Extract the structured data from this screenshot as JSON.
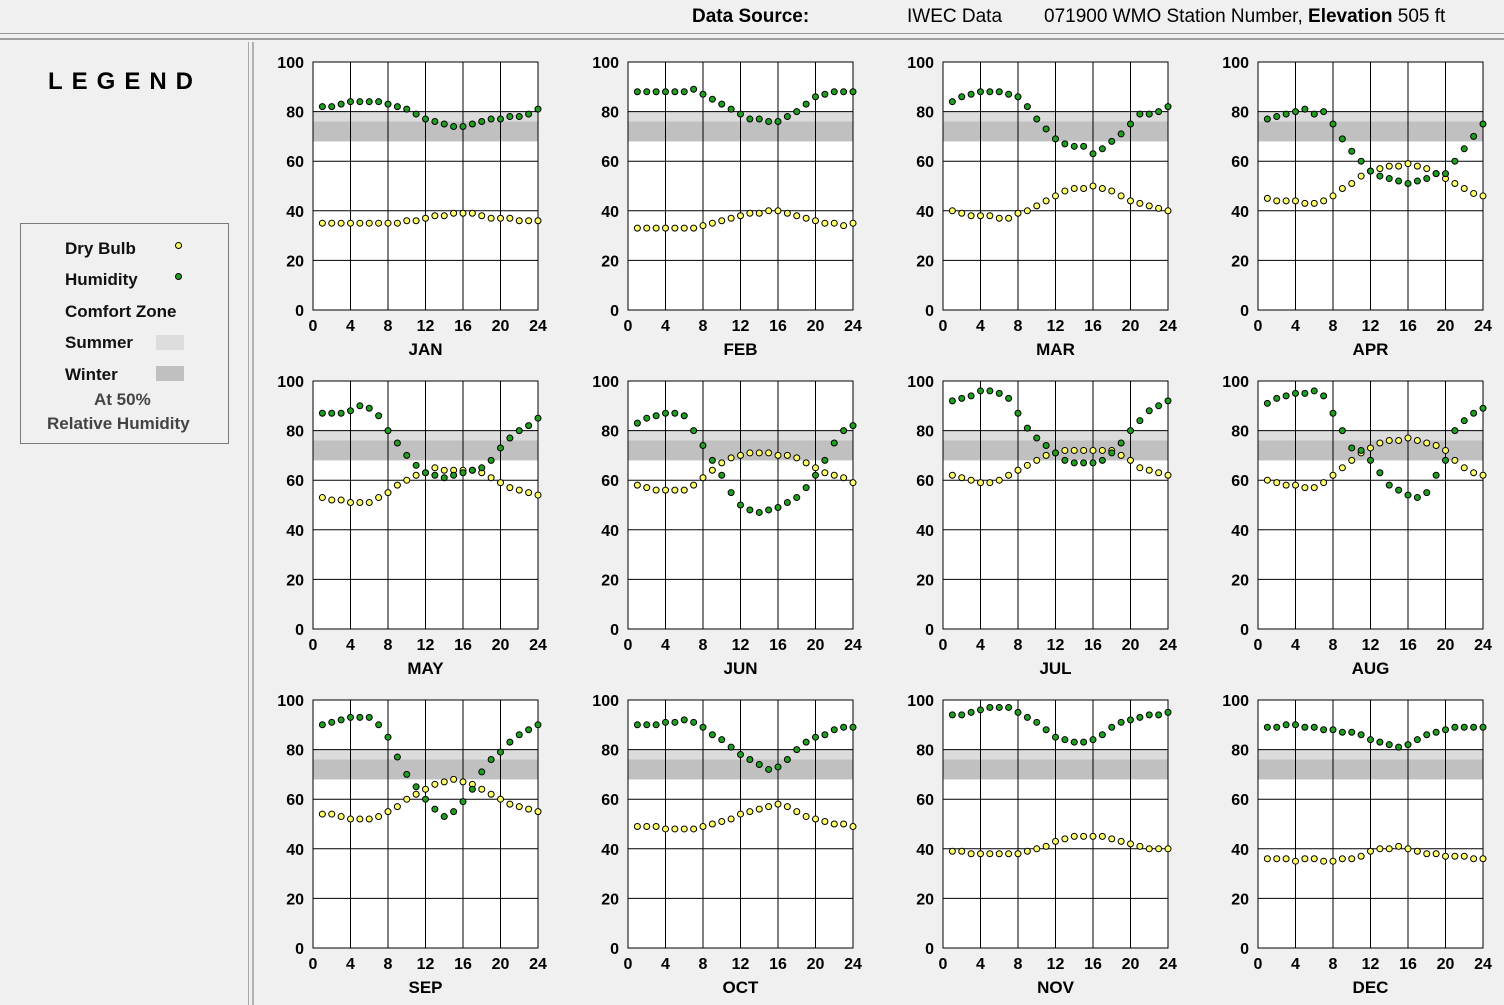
{
  "header": {
    "data_source_label": "Data Source:",
    "data_source_value": "IWEC Data",
    "station_number": "071900 WMO Station Number,",
    "elevation_label": "Elevation",
    "elevation_value": "505 ft"
  },
  "legend": {
    "title": "LEGEND",
    "dry_bulb": "Dry Bulb",
    "humidity": "Humidity",
    "comfort_zone": "Comfort Zone",
    "summer": "Summer",
    "winter": "Winter",
    "note_line1": "At 50%",
    "note_line2": "Relative Humidity"
  },
  "colors": {
    "dry_bulb": "#ffff66",
    "humidity": "#1f9e1f",
    "summer_zone": "#dcdcdc",
    "winter_zone": "#c0c0c0"
  },
  "chart_data": {
    "type": "scatter",
    "x_ticks": [
      0,
      4,
      8,
      12,
      16,
      20,
      24
    ],
    "y_ticks": [
      0,
      20,
      40,
      60,
      80,
      100
    ],
    "xlim": [
      0,
      24
    ],
    "ylim": [
      0,
      100
    ],
    "grid": true,
    "comfort_zone": {
      "summer": [
        68,
        80
      ],
      "winter": [
        68,
        76
      ]
    },
    "months": [
      {
        "name": "JAN",
        "dry_bulb": [
          35,
          35,
          35,
          35,
          35,
          35,
          35,
          35,
          35,
          36,
          36,
          37,
          38,
          38,
          39,
          39,
          39,
          38,
          37,
          37,
          37,
          36,
          36,
          36
        ],
        "humidity": [
          82,
          82,
          83,
          84,
          84,
          84,
          84,
          83,
          82,
          81,
          79,
          77,
          76,
          75,
          74,
          74,
          75,
          76,
          77,
          77,
          78,
          78,
          79,
          81
        ]
      },
      {
        "name": "FEB",
        "dry_bulb": [
          33,
          33,
          33,
          33,
          33,
          33,
          33,
          34,
          35,
          36,
          37,
          38,
          39,
          39,
          40,
          40,
          39,
          38,
          37,
          36,
          35,
          35,
          34,
          35
        ],
        "humidity": [
          88,
          88,
          88,
          88,
          88,
          88,
          89,
          87,
          85,
          83,
          81,
          79,
          77,
          77,
          76,
          76,
          78,
          80,
          83,
          86,
          87,
          88,
          88,
          88
        ]
      },
      {
        "name": "MAR",
        "dry_bulb": [
          40,
          39,
          38,
          38,
          38,
          37,
          37,
          39,
          40,
          42,
          44,
          46,
          48,
          49,
          49,
          50,
          49,
          48,
          46,
          44,
          43,
          42,
          41,
          40
        ],
        "humidity": [
          84,
          86,
          87,
          88,
          88,
          88,
          87,
          86,
          82,
          77,
          73,
          69,
          67,
          66,
          66,
          63,
          65,
          68,
          71,
          75,
          79,
          79,
          80,
          82
        ]
      },
      {
        "name": "APR",
        "dry_bulb": [
          45,
          44,
          44,
          44,
          43,
          43,
          44,
          46,
          49,
          51,
          54,
          56,
          57,
          58,
          58,
          59,
          58,
          57,
          55,
          53,
          51,
          49,
          47,
          46
        ],
        "humidity": [
          77,
          78,
          79,
          80,
          81,
          79,
          80,
          75,
          69,
          64,
          60,
          56,
          54,
          53,
          52,
          51,
          52,
          53,
          55,
          55,
          60,
          65,
          70,
          75
        ]
      },
      {
        "name": "MAY",
        "dry_bulb": [
          53,
          52,
          52,
          51,
          51,
          51,
          53,
          55,
          58,
          60,
          62,
          63,
          65,
          64,
          64,
          64,
          64,
          63,
          61,
          59,
          57,
          56,
          55,
          54
        ],
        "humidity": [
          87,
          87,
          87,
          88,
          90,
          89,
          86,
          80,
          75,
          70,
          66,
          63,
          62,
          61,
          62,
          63,
          64,
          65,
          68,
          73,
          77,
          80,
          82,
          85
        ]
      },
      {
        "name": "JUN",
        "dry_bulb": [
          58,
          57,
          56,
          56,
          56,
          56,
          58,
          61,
          64,
          67,
          69,
          70,
          71,
          71,
          71,
          70,
          70,
          69,
          67,
          65,
          63,
          62,
          61,
          59
        ],
        "humidity": [
          83,
          85,
          86,
          87,
          87,
          86,
          80,
          74,
          68,
          62,
          55,
          50,
          48,
          47,
          48,
          49,
          51,
          53,
          57,
          62,
          68,
          75,
          80,
          82
        ]
      },
      {
        "name": "JUL",
        "dry_bulb": [
          62,
          61,
          60,
          59,
          59,
          60,
          62,
          64,
          66,
          68,
          70,
          71,
          72,
          72,
          72,
          72,
          72,
          72,
          70,
          68,
          65,
          64,
          63,
          62
        ],
        "humidity": [
          92,
          93,
          94,
          96,
          96,
          95,
          93,
          87,
          81,
          77,
          74,
          71,
          68,
          67,
          67,
          67,
          68,
          71,
          75,
          80,
          84,
          88,
          90,
          92
        ]
      },
      {
        "name": "AUG",
        "dry_bulb": [
          60,
          59,
          58,
          58,
          57,
          57,
          59,
          62,
          65,
          68,
          71,
          73,
          75,
          76,
          76,
          77,
          76,
          75,
          74,
          72,
          68,
          65,
          63,
          62
        ],
        "humidity": [
          91,
          93,
          94,
          95,
          95,
          96,
          94,
          87,
          80,
          73,
          72,
          68,
          63,
          58,
          56,
          54,
          53,
          55,
          62,
          68,
          80,
          84,
          87,
          89
        ]
      },
      {
        "name": "SEP",
        "dry_bulb": [
          54,
          54,
          53,
          52,
          52,
          52,
          53,
          55,
          57,
          60,
          62,
          64,
          66,
          67,
          68,
          67,
          66,
          64,
          62,
          60,
          58,
          57,
          56,
          55
        ],
        "humidity": [
          90,
          91,
          92,
          93,
          93,
          93,
          90,
          85,
          77,
          70,
          65,
          60,
          56,
          53,
          55,
          59,
          64,
          71,
          76,
          79,
          83,
          86,
          88,
          90
        ]
      },
      {
        "name": "OCT",
        "dry_bulb": [
          49,
          49,
          49,
          48,
          48,
          48,
          48,
          49,
          50,
          51,
          52,
          54,
          55,
          56,
          57,
          58,
          57,
          55,
          53,
          52,
          51,
          50,
          50,
          49
        ],
        "humidity": [
          90,
          90,
          90,
          91,
          91,
          92,
          91,
          89,
          86,
          84,
          81,
          78,
          76,
          74,
          72,
          73,
          76,
          80,
          83,
          85,
          86,
          88,
          89,
          89
        ]
      },
      {
        "name": "NOV",
        "dry_bulb": [
          39,
          39,
          38,
          38,
          38,
          38,
          38,
          38,
          39,
          40,
          41,
          43,
          44,
          45,
          45,
          45,
          45,
          44,
          43,
          42,
          41,
          40,
          40,
          40
        ],
        "humidity": [
          94,
          94,
          95,
          96,
          97,
          97,
          97,
          95,
          93,
          91,
          88,
          85,
          84,
          83,
          83,
          84,
          86,
          89,
          91,
          92,
          93,
          94,
          94,
          95
        ]
      },
      {
        "name": "DEC",
        "dry_bulb": [
          36,
          36,
          36,
          35,
          36,
          36,
          35,
          35,
          36,
          36,
          37,
          39,
          40,
          40,
          41,
          40,
          39,
          38,
          38,
          37,
          37,
          37,
          36,
          36
        ],
        "humidity": [
          89,
          89,
          90,
          90,
          89,
          89,
          88,
          88,
          87,
          87,
          86,
          84,
          83,
          82,
          81,
          82,
          84,
          86,
          87,
          88,
          89,
          89,
          89,
          89
        ]
      }
    ]
  }
}
